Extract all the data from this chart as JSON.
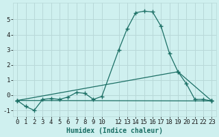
{
  "xlabel": "Humidex (Indice chaleur)",
  "bg_color": "#cff0ef",
  "grid_color": "#b8d8d8",
  "line_color": "#1a6e64",
  "xlim": [
    -0.5,
    23.5
  ],
  "ylim": [
    -1.4,
    6.1
  ],
  "xticks": [
    0,
    1,
    2,
    3,
    4,
    5,
    6,
    7,
    8,
    9,
    10,
    12,
    13,
    14,
    15,
    16,
    17,
    18,
    19,
    20,
    21,
    22,
    23
  ],
  "yticks": [
    -1,
    0,
    1,
    2,
    3,
    4,
    5
  ],
  "line1_x": [
    0,
    1,
    2,
    3,
    4,
    5,
    6,
    7,
    8,
    9,
    10,
    12,
    13,
    14,
    15,
    16,
    17,
    18,
    19,
    20,
    21,
    22,
    23
  ],
  "line1_y": [
    -0.35,
    -0.75,
    -1.0,
    -0.28,
    -0.22,
    -0.28,
    -0.12,
    0.18,
    0.12,
    -0.28,
    -0.08,
    3.0,
    4.4,
    5.45,
    5.55,
    5.5,
    4.55,
    2.75,
    1.55,
    0.75,
    -0.28,
    -0.28,
    -0.38
  ],
  "line2_x": [
    0,
    23
  ],
  "line2_y": [
    -0.35,
    -0.38
  ],
  "line3_x": [
    0,
    19,
    23
  ],
  "line3_y": [
    -0.35,
    1.55,
    -0.38
  ],
  "marker": "+",
  "markersize": 4,
  "linewidth": 0.9,
  "xlabel_fontsize": 7,
  "tick_fontsize": 6.5
}
